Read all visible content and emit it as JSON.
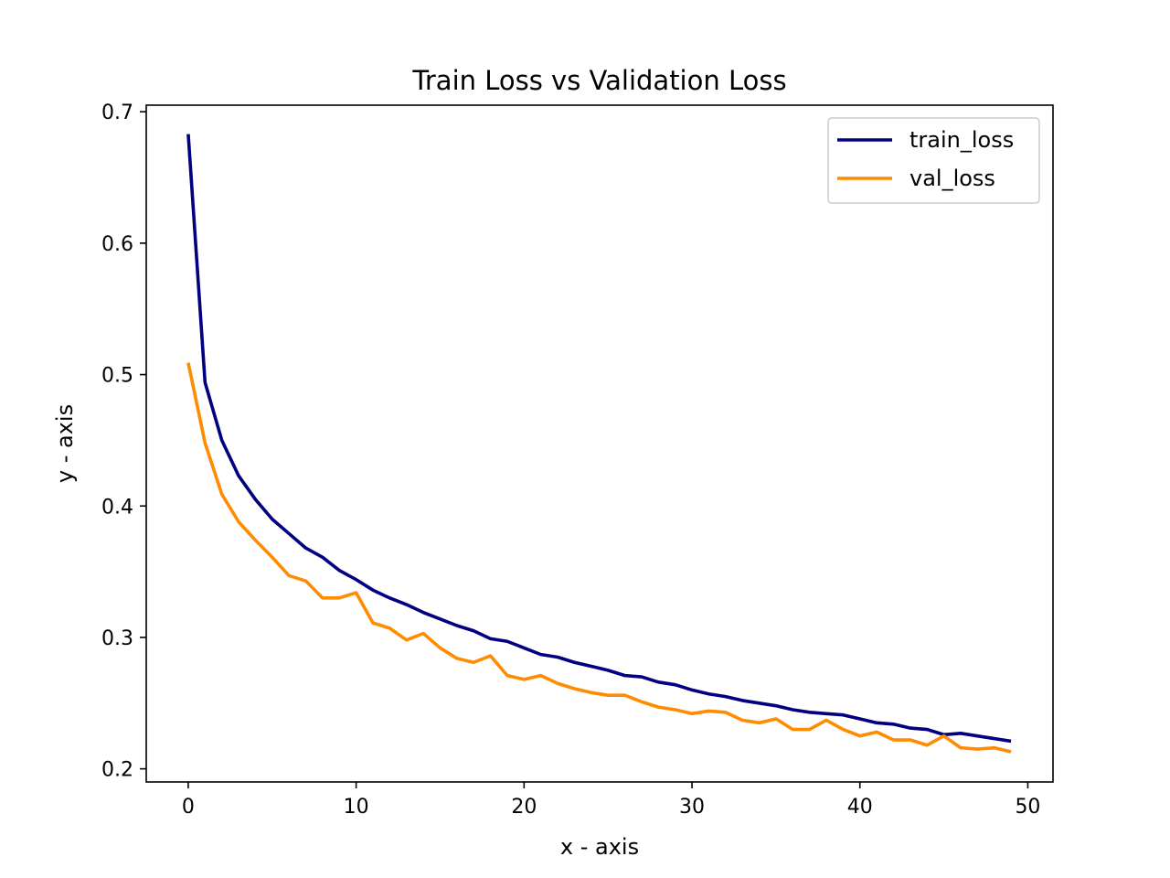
{
  "chart_data": {
    "type": "line",
    "title": "Train Loss vs Validation Loss",
    "xlabel": "x - axis",
    "ylabel": "y - axis",
    "xlim": [
      -2.5,
      51.5
    ],
    "ylim": [
      0.19,
      0.705
    ],
    "xticks": [
      0,
      10,
      20,
      30,
      40,
      50
    ],
    "xtick_labels": [
      "0",
      "10",
      "20",
      "30",
      "40",
      "50"
    ],
    "yticks": [
      0.2,
      0.3,
      0.4,
      0.5,
      0.6,
      0.7
    ],
    "ytick_labels": [
      "0.2",
      "0.3",
      "0.4",
      "0.5",
      "0.6",
      "0.7"
    ],
    "grid": false,
    "legend_position": "top-right",
    "x": [
      0,
      1,
      2,
      3,
      4,
      5,
      6,
      7,
      8,
      9,
      10,
      11,
      12,
      13,
      14,
      15,
      16,
      17,
      18,
      19,
      20,
      21,
      22,
      23,
      24,
      25,
      26,
      27,
      28,
      29,
      30,
      31,
      32,
      33,
      34,
      35,
      36,
      37,
      38,
      39,
      40,
      41,
      42,
      43,
      44,
      45,
      46,
      47,
      48,
      49
    ],
    "series": [
      {
        "name": "train_loss",
        "color": "#000080",
        "values": [
          0.683,
          0.494,
          0.45,
          0.423,
          0.405,
          0.39,
          0.379,
          0.368,
          0.361,
          0.351,
          0.344,
          0.336,
          0.33,
          0.325,
          0.319,
          0.314,
          0.309,
          0.305,
          0.299,
          0.297,
          0.292,
          0.287,
          0.285,
          0.281,
          0.278,
          0.275,
          0.271,
          0.27,
          0.266,
          0.264,
          0.26,
          0.257,
          0.255,
          0.252,
          0.25,
          0.248,
          0.245,
          0.243,
          0.242,
          0.241,
          0.238,
          0.235,
          0.234,
          0.231,
          0.23,
          0.226,
          0.227,
          0.225,
          0.223,
          0.221
        ]
      },
      {
        "name": "val_loss",
        "color": "#ff8c00",
        "values": [
          0.509,
          0.448,
          0.409,
          0.388,
          0.374,
          0.361,
          0.347,
          0.343,
          0.33,
          0.33,
          0.334,
          0.311,
          0.307,
          0.298,
          0.303,
          0.292,
          0.284,
          0.281,
          0.286,
          0.271,
          0.268,
          0.271,
          0.265,
          0.261,
          0.258,
          0.256,
          0.256,
          0.251,
          0.247,
          0.245,
          0.242,
          0.244,
          0.243,
          0.237,
          0.235,
          0.238,
          0.23,
          0.23,
          0.237,
          0.23,
          0.225,
          0.228,
          0.222,
          0.222,
          0.218,
          0.225,
          0.216,
          0.215,
          0.216,
          0.213
        ]
      }
    ]
  }
}
